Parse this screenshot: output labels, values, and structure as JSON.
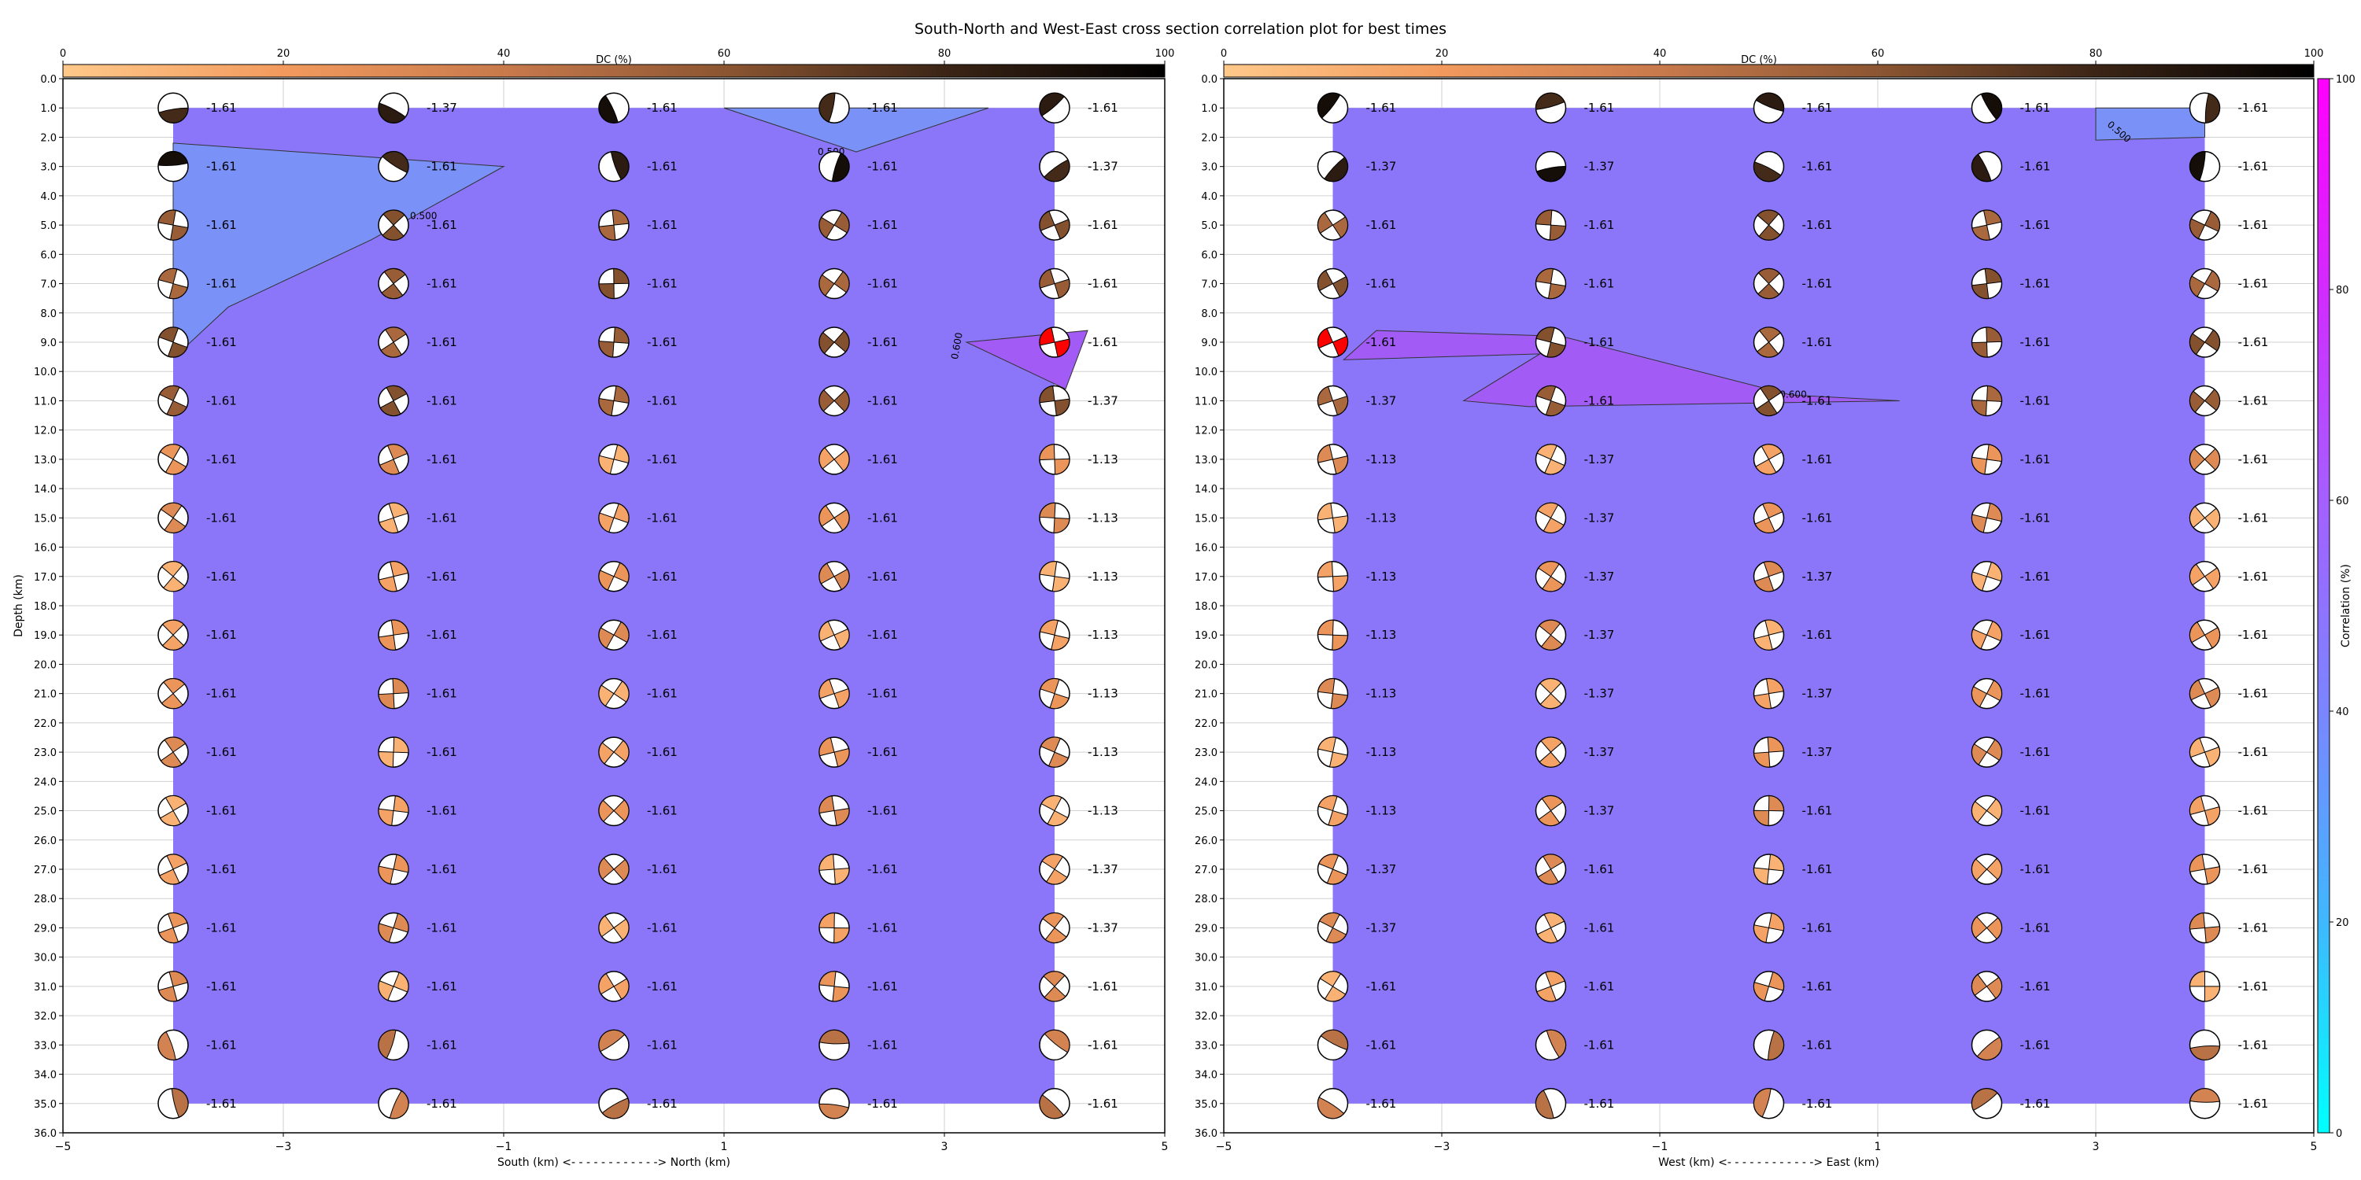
{
  "title": "South-North and West-East cross section correlation plot for best times",
  "chart_data": [
    {
      "type": "contour",
      "panel": "south-north",
      "xlabel": "South (km) <- - - - - - - - - - - -> North (km)",
      "ylabel": "Depth (km)",
      "xlim": [
        -5,
        5
      ],
      "ylim": [
        36,
        0
      ],
      "x_ticks": [
        "−5",
        "−3",
        "−1",
        "1",
        "3",
        "5"
      ],
      "y_ticks": [
        "0.0",
        "1.0",
        "2.0",
        "3.0",
        "4.0",
        "5.0",
        "6.0",
        "7.0",
        "8.0",
        "9.0",
        "10.0",
        "11.0",
        "12.0",
        "13.0",
        "14.0",
        "15.0",
        "16.0",
        "17.0",
        "18.0",
        "19.0",
        "20.0",
        "21.0",
        "22.0",
        "23.0",
        "24.0",
        "25.0",
        "26.0",
        "27.0",
        "28.0",
        "29.0",
        "30.0",
        "31.0",
        "32.0",
        "33.0",
        "34.0",
        "35.0",
        "36.0"
      ],
      "grid": true,
      "positions_x": [
        -4,
        -2,
        0,
        2,
        4
      ],
      "depths": [
        1,
        3,
        5,
        7,
        9,
        11,
        13,
        15,
        17,
        19,
        21,
        23,
        25,
        27,
        29,
        31,
        33,
        35
      ],
      "time_shift_labels": [
        [
          "-1.61",
          "-1.37",
          "-1.61",
          "-1.61",
          "-1.61"
        ],
        [
          "-1.61",
          "-1.61",
          "-1.61",
          "-1.61",
          "-1.37"
        ],
        [
          "-1.61",
          "-1.61",
          "-1.61",
          "-1.61",
          "-1.61"
        ],
        [
          "-1.61",
          "-1.61",
          "-1.61",
          "-1.61",
          "-1.61"
        ],
        [
          "-1.61",
          "-1.61",
          "-1.61",
          "-1.61",
          "-1.61"
        ],
        [
          "-1.61",
          "-1.61",
          "-1.61",
          "-1.61",
          "-1.37"
        ],
        [
          "-1.61",
          "-1.61",
          "-1.61",
          "-1.61",
          "-1.13"
        ],
        [
          "-1.61",
          "-1.61",
          "-1.61",
          "-1.61",
          "-1.13"
        ],
        [
          "-1.61",
          "-1.61",
          "-1.61",
          "-1.61",
          "-1.13"
        ],
        [
          "-1.61",
          "-1.61",
          "-1.61",
          "-1.61",
          "-1.13"
        ],
        [
          "-1.61",
          "-1.61",
          "-1.61",
          "-1.61",
          "-1.13"
        ],
        [
          "-1.61",
          "-1.61",
          "-1.61",
          "-1.61",
          "-1.13"
        ],
        [
          "-1.61",
          "-1.61",
          "-1.61",
          "-1.61",
          "-1.13"
        ],
        [
          "-1.61",
          "-1.61",
          "-1.61",
          "-1.61",
          "-1.37"
        ],
        [
          "-1.61",
          "-1.61",
          "-1.61",
          "-1.61",
          "-1.37"
        ],
        [
          "-1.61",
          "-1.61",
          "-1.61",
          "-1.61",
          "-1.61"
        ],
        [
          "-1.61",
          "-1.61",
          "-1.61",
          "-1.61",
          "-1.61"
        ],
        [
          "-1.61",
          "-1.61",
          "-1.61",
          "-1.61",
          "-1.61"
        ]
      ],
      "contour_labels": [
        "0.500",
        "0.500",
        "0.600"
      ],
      "base_correlation_fill": "#8b75f8",
      "best_solution": {
        "x": 4,
        "depth": 9
      }
    },
    {
      "type": "contour",
      "panel": "west-east",
      "xlabel": "West (km) <- - - - - - - - - - - -> East (km)",
      "ylabel": "",
      "xlim": [
        -5,
        5
      ],
      "ylim": [
        36,
        0
      ],
      "x_ticks": [
        "−5",
        "−3",
        "−1",
        "1",
        "3",
        "5"
      ],
      "y_ticks": [
        "0.0",
        "1.0",
        "2.0",
        "3.0",
        "4.0",
        "5.0",
        "6.0",
        "7.0",
        "8.0",
        "9.0",
        "10.0",
        "11.0",
        "12.0",
        "13.0",
        "14.0",
        "15.0",
        "16.0",
        "17.0",
        "18.0",
        "19.0",
        "20.0",
        "21.0",
        "22.0",
        "23.0",
        "24.0",
        "25.0",
        "26.0",
        "27.0",
        "28.0",
        "29.0",
        "30.0",
        "31.0",
        "32.0",
        "33.0",
        "34.0",
        "35.0",
        "36.0"
      ],
      "grid": true,
      "positions_x": [
        -4,
        -2,
        0,
        2,
        4
      ],
      "depths": [
        1,
        3,
        5,
        7,
        9,
        11,
        13,
        15,
        17,
        19,
        21,
        23,
        25,
        27,
        29,
        31,
        33,
        35
      ],
      "time_shift_labels": [
        [
          "-1.61",
          "-1.61",
          "-1.61",
          "-1.61",
          "-1.61"
        ],
        [
          "-1.37",
          "-1.37",
          "-1.61",
          "-1.61",
          "-1.61"
        ],
        [
          "-1.61",
          "-1.61",
          "-1.61",
          "-1.61",
          "-1.61"
        ],
        [
          "-1.61",
          "-1.61",
          "-1.61",
          "-1.61",
          "-1.61"
        ],
        [
          "-1.61",
          "-1.61",
          "-1.61",
          "-1.61",
          "-1.61"
        ],
        [
          "-1.37",
          "-1.61",
          "-1.61",
          "-1.61",
          "-1.61"
        ],
        [
          "-1.13",
          "-1.37",
          "-1.61",
          "-1.61",
          "-1.61"
        ],
        [
          "-1.13",
          "-1.37",
          "-1.61",
          "-1.61",
          "-1.61"
        ],
        [
          "-1.13",
          "-1.37",
          "-1.37",
          "-1.61",
          "-1.61"
        ],
        [
          "-1.13",
          "-1.37",
          "-1.61",
          "-1.61",
          "-1.61"
        ],
        [
          "-1.13",
          "-1.37",
          "-1.37",
          "-1.61",
          "-1.61"
        ],
        [
          "-1.13",
          "-1.37",
          "-1.37",
          "-1.61",
          "-1.61"
        ],
        [
          "-1.13",
          "-1.37",
          "-1.61",
          "-1.61",
          "-1.61"
        ],
        [
          "-1.37",
          "-1.61",
          "-1.61",
          "-1.61",
          "-1.61"
        ],
        [
          "-1.37",
          "-1.61",
          "-1.61",
          "-1.61",
          "-1.61"
        ],
        [
          "-1.61",
          "-1.61",
          "-1.61",
          "-1.61",
          "-1.61"
        ],
        [
          "-1.61",
          "-1.61",
          "-1.61",
          "-1.61",
          "-1.61"
        ],
        [
          "-1.61",
          "-1.61",
          "-1.61",
          "-1.61",
          "-1.61"
        ]
      ],
      "contour_labels": [
        "0.500",
        "0.600"
      ],
      "base_correlation_fill": "#8b75f8",
      "best_solution": {
        "x": -4,
        "depth": 9
      }
    }
  ],
  "dc_colorbar": {
    "label": "DC (%)",
    "ticks": [
      "0",
      "20",
      "40",
      "60",
      "80",
      "100"
    ],
    "colors": [
      "#ffc98a",
      "#f29a5e",
      "#c87a4c",
      "#8c5632",
      "#3c2516",
      "#000000"
    ]
  },
  "correlation_colorbar": {
    "label": "Correlation (%)",
    "ticks": [
      "0",
      "20",
      "40",
      "60",
      "80",
      "100"
    ],
    "colors": [
      "#00ffff",
      "#3fb8ff",
      "#7a86ff",
      "#a460ff",
      "#d22bff",
      "#ff00ff"
    ]
  },
  "colors": {
    "best_solution_fill": "#ff0000",
    "region_low": "#7a91f7",
    "region_high": "#a25bf5"
  }
}
